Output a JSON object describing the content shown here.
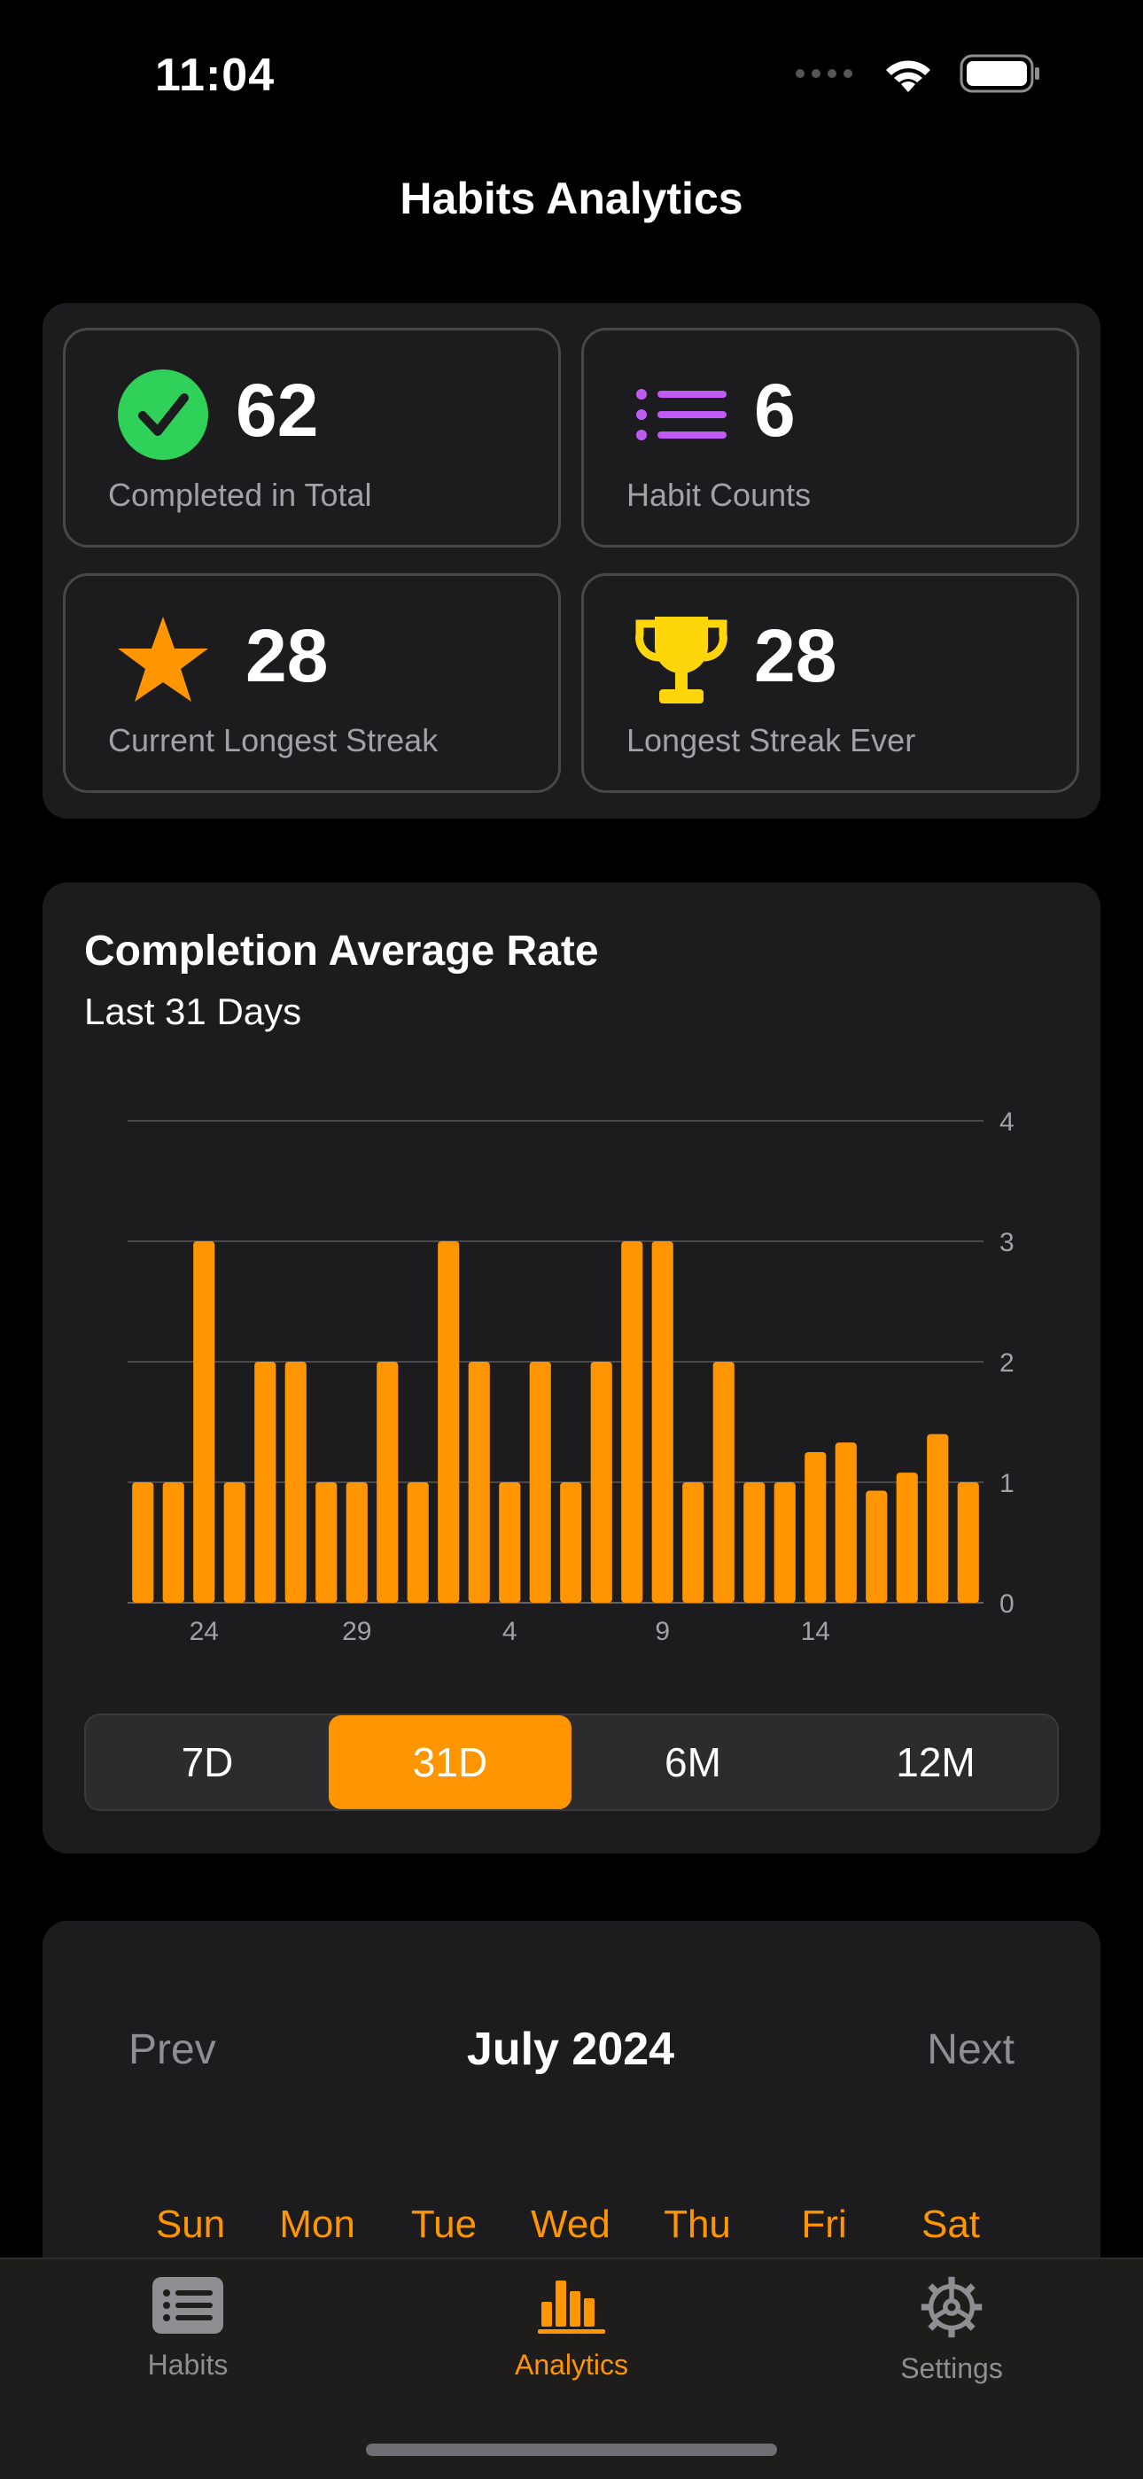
{
  "status_bar": {
    "time": "11:04"
  },
  "nav": {
    "title": "Habits Analytics"
  },
  "stats": [
    {
      "value": "62",
      "label": "Completed in Total",
      "icon": "checkmark-circle-icon",
      "color": "#30d158"
    },
    {
      "value": "6",
      "label": "Habit Counts",
      "icon": "list-icon",
      "color": "#bf5af2"
    },
    {
      "value": "28",
      "label": "Current Longest Streak",
      "icon": "star-icon",
      "color": "#ff9500"
    },
    {
      "value": "28",
      "label": "Longest Streak Ever",
      "icon": "trophy-icon",
      "color": "#ffd60a"
    }
  ],
  "chart": {
    "title": "Completion Average Rate",
    "subtitle": "Last 31 Days",
    "segments": [
      {
        "label": "7D",
        "selected": false
      },
      {
        "label": "31D",
        "selected": true
      },
      {
        "label": "6M",
        "selected": false
      },
      {
        "label": "12M",
        "selected": false
      }
    ]
  },
  "chart_data": {
    "type": "bar",
    "color": "#ff9500",
    "x_tick_labels": [
      {
        "day_index": 2,
        "label": "24"
      },
      {
        "day_index": 7,
        "label": "29"
      },
      {
        "day_index": 12,
        "label": "4"
      },
      {
        "day_index": 17,
        "label": "9"
      },
      {
        "day_index": 22,
        "label": "14"
      }
    ],
    "values": [
      1,
      1,
      3,
      1,
      2,
      2,
      1,
      1,
      2,
      1,
      3,
      2,
      1,
      2,
      1,
      2,
      3,
      3,
      1,
      2,
      1,
      1,
      1.25,
      1.33,
      0.93,
      1.08,
      1.4,
      1
    ],
    "ylim": [
      0,
      4
    ],
    "y_ticks": [
      "0",
      "1",
      "2",
      "3",
      "4"
    ],
    "grid": true
  },
  "calendar": {
    "prev_label": "Prev",
    "next_label": "Next",
    "title": "July 2024",
    "weekdays": [
      "Sun",
      "Mon",
      "Tue",
      "Wed",
      "Thu",
      "Fri",
      "Sat"
    ]
  },
  "tabbar": {
    "tabs": [
      {
        "label": "Habits",
        "icon": "habits-list-icon",
        "active": false
      },
      {
        "label": "Analytics",
        "icon": "bar-chart-icon",
        "active": true
      },
      {
        "label": "Settings",
        "icon": "gear-icon",
        "active": false
      }
    ]
  }
}
